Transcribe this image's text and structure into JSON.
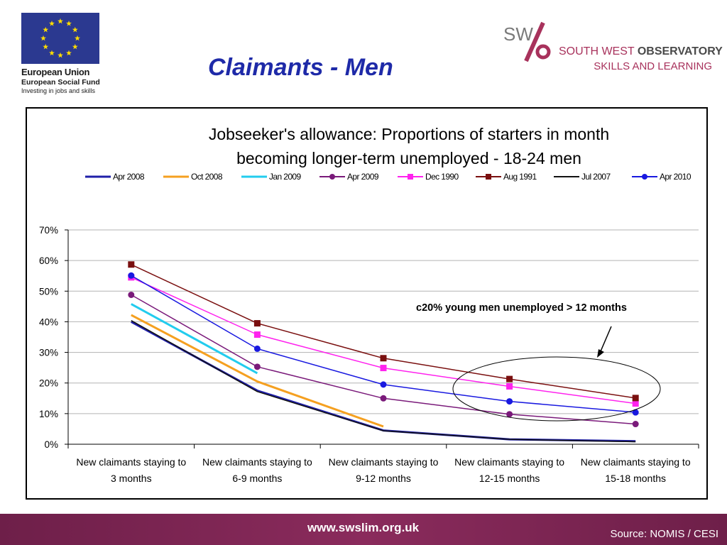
{
  "header": {
    "title": "Claimants - Men",
    "eu_logo": {
      "line1": "European Union",
      "line2": "European Social Fund",
      "line3": "Investing in jobs and skills"
    },
    "swo_logo": {
      "mark_letters": "SW",
      "line1_regular": "SOUTH WEST ",
      "line1_bold": "OBSERVATORY",
      "line2": "SKILLS AND LEARNING",
      "accent_color": "#a8325c"
    }
  },
  "footer": {
    "url": "www.swslim.org.uk",
    "source": "Source: NOMIS / CESI"
  },
  "chart_data": {
    "type": "line",
    "title_lines": [
      "Jobseeker's allowance: Proportions of starters in month",
      "becoming longer-term unemployed - 18-24 men"
    ],
    "xlabel": "",
    "ylabel": "",
    "categories": [
      [
        "New  claimants staying to",
        "3 months"
      ],
      [
        "New  claimants staying to",
        "6-9 months"
      ],
      [
        "New  claimants staying to",
        "9-12 months"
      ],
      [
        "New  claimants staying to",
        "12-15 months"
      ],
      [
        "New  claimants staying to",
        "15-18 months"
      ]
    ],
    "y_ticks": [
      "0%",
      "10%",
      "20%",
      "30%",
      "40%",
      "50%",
      "60%",
      "70%"
    ],
    "ylim": [
      0,
      70
    ],
    "grid": true,
    "legend_position": "top",
    "annotation": "c20% young men unemployed > 12 months",
    "series": [
      {
        "name": "Apr 2008",
        "color": "#1f1fa8",
        "marker": "none",
        "width": 3,
        "values": [
          40,
          17.5,
          4.5,
          1.6,
          1.0
        ]
      },
      {
        "name": "Oct 2008",
        "color": "#f5a020",
        "marker": "none",
        "width": 3,
        "values": [
          42.2,
          20.5,
          5.8,
          null,
          null
        ]
      },
      {
        "name": "Jan 2009",
        "color": "#22ccee",
        "marker": "none",
        "width": 3,
        "values": [
          45.8,
          23.2,
          null,
          null,
          null
        ]
      },
      {
        "name": "Apr 2009",
        "color": "#7a1a7a",
        "marker": "circle",
        "width": 1.5,
        "values": [
          48.8,
          25.3,
          15.0,
          9.8,
          6.6
        ]
      },
      {
        "name": "Dec 1990",
        "color": "#ff22ee",
        "marker": "square",
        "width": 1.5,
        "values": [
          54.5,
          35.8,
          24.9,
          18.9,
          13.3
        ]
      },
      {
        "name": "Aug 1991",
        "color": "#7a0f0f",
        "marker": "square",
        "width": 1.5,
        "values": [
          58.7,
          39.5,
          28.1,
          21.3,
          15.1
        ]
      },
      {
        "name": "Jul 2007",
        "color": "#111111",
        "marker": "none",
        "width": 1.5,
        "values": [
          40.4,
          17.2,
          4.4,
          1.6,
          0.8
        ]
      },
      {
        "name": "Apr 2010",
        "color": "#1919e0",
        "marker": "circle",
        "width": 1.5,
        "values": [
          55.1,
          31.2,
          19.5,
          14.0,
          10.4
        ]
      }
    ]
  }
}
